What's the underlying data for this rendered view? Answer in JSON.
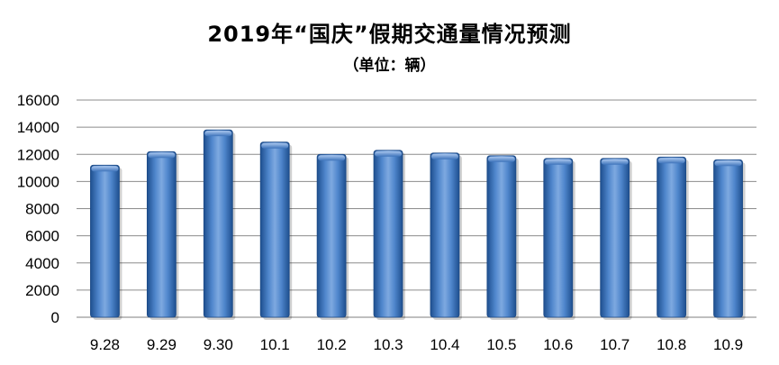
{
  "chart_data": {
    "type": "bar",
    "title": "2019年“国庆”假期交通量情况预测",
    "subtitle": "（单位：辆）",
    "categories": [
      "9.28",
      "9.29",
      "9.30",
      "10.1",
      "10.2",
      "10.3",
      "10.4",
      "10.5",
      "10.6",
      "10.7",
      "10.8",
      "10.9"
    ],
    "values": [
      11200,
      12200,
      13800,
      12900,
      12000,
      12300,
      12100,
      11900,
      11700,
      11700,
      11800,
      11600
    ],
    "ylim": [
      0,
      16000
    ],
    "yticks": [
      "0",
      "2000",
      "4000",
      "6000",
      "8000",
      "10000",
      "12000",
      "14000",
      "16000"
    ],
    "grid": true,
    "bar_color": "#4a7ec6"
  }
}
